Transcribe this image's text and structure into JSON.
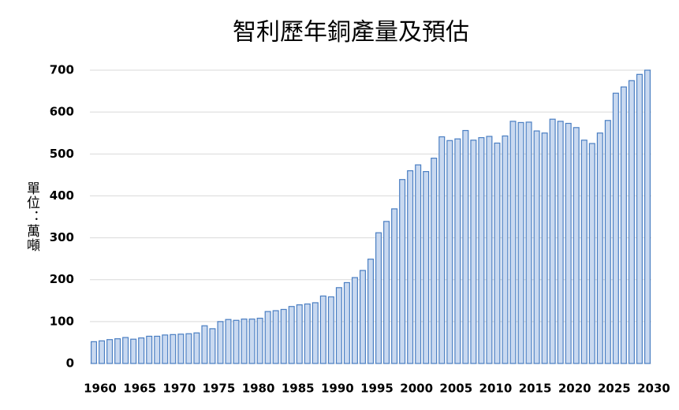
{
  "chart_data": {
    "type": "bar",
    "title": "智利歷年銅產量及預估",
    "y_label": "單位：萬噸",
    "categories": [
      "1960",
      null,
      null,
      null,
      null,
      "1965",
      null,
      null,
      null,
      null,
      "1970",
      null,
      null,
      null,
      null,
      "1975",
      null,
      null,
      null,
      null,
      "1980",
      null,
      null,
      null,
      null,
      "1985",
      null,
      null,
      null,
      null,
      "1990",
      null,
      null,
      null,
      null,
      "1995",
      null,
      null,
      null,
      null,
      "2000",
      null,
      null,
      null,
      null,
      "2005",
      null,
      null,
      null,
      null,
      "2010",
      null,
      null,
      null,
      null,
      "2015",
      null,
      null,
      null,
      null,
      "2020",
      null,
      null,
      null,
      null,
      "2025",
      null,
      null,
      null,
      null,
      "2030"
    ],
    "values": [
      52,
      54,
      57,
      59,
      62,
      58,
      61,
      65,
      65,
      68,
      69,
      70,
      71,
      73,
      90,
      83,
      100,
      105,
      103,
      106,
      106,
      108,
      124,
      126,
      129,
      136,
      140,
      142,
      145,
      161,
      159,
      181,
      193,
      205,
      222,
      249,
      312,
      339,
      369,
      439,
      460,
      474,
      458,
      490,
      541,
      532,
      536,
      556,
      533,
      539,
      542,
      526,
      543,
      578,
      575,
      576,
      555,
      550,
      583,
      578,
      573,
      563,
      533,
      525,
      550,
      580,
      645,
      660,
      675,
      690,
      700
    ],
    "color": "#c9d9f0",
    "edge_color": "#4a7ec2",
    "ylim": [
      0,
      700
    ],
    "yticks": [
      0,
      100,
      200,
      300,
      400,
      500,
      600,
      700
    ],
    "grid": true
  }
}
